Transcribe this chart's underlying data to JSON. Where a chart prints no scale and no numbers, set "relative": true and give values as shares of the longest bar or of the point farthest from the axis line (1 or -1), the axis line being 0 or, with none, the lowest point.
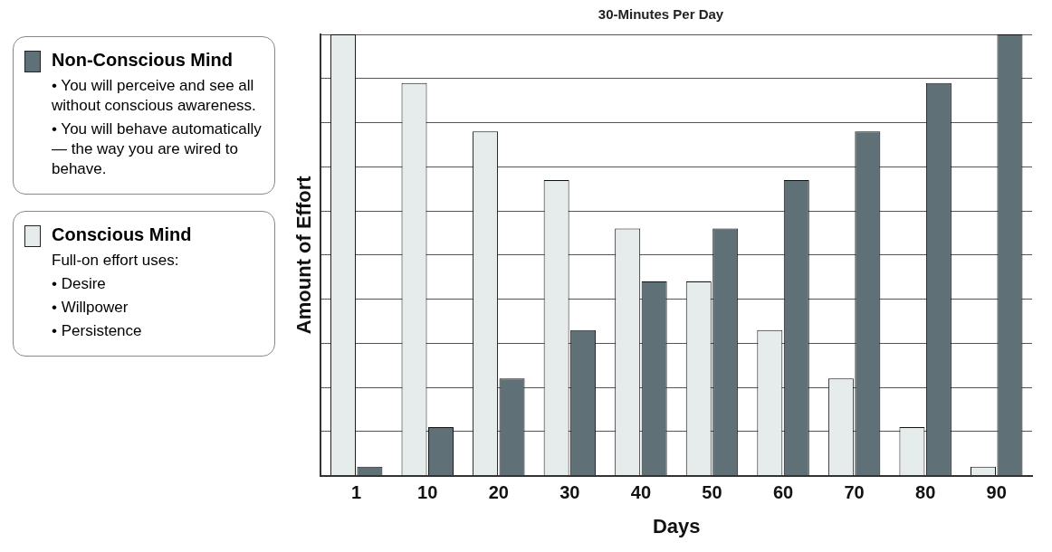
{
  "chart_data": {
    "type": "bar",
    "title": "30-Minutes Per Day",
    "xlabel": "Days",
    "ylabel": "Amount of Effort",
    "relative": true,
    "grid": "y",
    "legend": "left",
    "categories": [
      "1",
      "10",
      "20",
      "30",
      "40",
      "50",
      "60",
      "70",
      "80",
      "90"
    ],
    "series": [
      {
        "name": "Conscious Mind",
        "color": "#e6ecec",
        "values": [
          1,
          0.89,
          0.78,
          0.67,
          0.56,
          0.44,
          0.33,
          0.22,
          0.11,
          0.02
        ]
      },
      {
        "name": "Non-Conscious Mind",
        "color": "#5f7077",
        "values": [
          0.02,
          0.11,
          0.22,
          0.33,
          0.44,
          0.56,
          0.67,
          0.78,
          0.89,
          1
        ]
      }
    ],
    "annotations": [
      "• You will perceive and see all without conscious awareness.",
      "• You will behave automatically — the way you are wired to behave.",
      "Full-on effort uses:",
      "• Desire",
      "• Willpower",
      "• Persistence"
    ]
  }
}
